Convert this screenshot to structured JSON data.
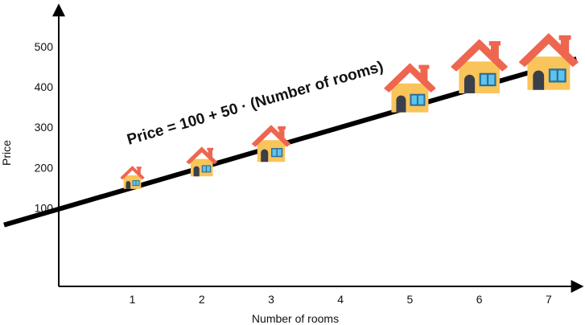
{
  "chart_data": {
    "type": "scatter",
    "title": "",
    "xlabel": "Number of rooms",
    "ylabel": "Price",
    "x_ticks": [
      1,
      2,
      3,
      4,
      5,
      6,
      7
    ],
    "y_ticks": [
      100,
      200,
      300,
      400,
      500
    ],
    "xlim": [
      -0.85,
      7.5
    ],
    "ylim": [
      -95,
      600
    ],
    "grid": false,
    "legend": "none",
    "points": [
      {
        "x": 1,
        "y": 160,
        "size": 0.47
      },
      {
        "x": 2,
        "y": 195,
        "size": 0.6
      },
      {
        "x": 3,
        "y": 235,
        "size": 0.75
      },
      {
        "x": 5,
        "y": 365,
        "size": 1.0
      },
      {
        "x": 6,
        "y": 415,
        "size": 1.1
      },
      {
        "x": 7,
        "y": 425,
        "size": 1.15
      }
    ],
    "regression_line": {
      "intercept": 100,
      "slope": 50,
      "label": "Price = 100 + 50 · (Number of rooms)",
      "color": "#000000"
    },
    "marker": "house-icon",
    "colors": {
      "roof": "#ee6650",
      "wall": "#f9c45a",
      "window": "#5cc4ee",
      "window_frame": "#2e6f94",
      "door": "#3a3f4a",
      "axis": "#000000"
    }
  }
}
